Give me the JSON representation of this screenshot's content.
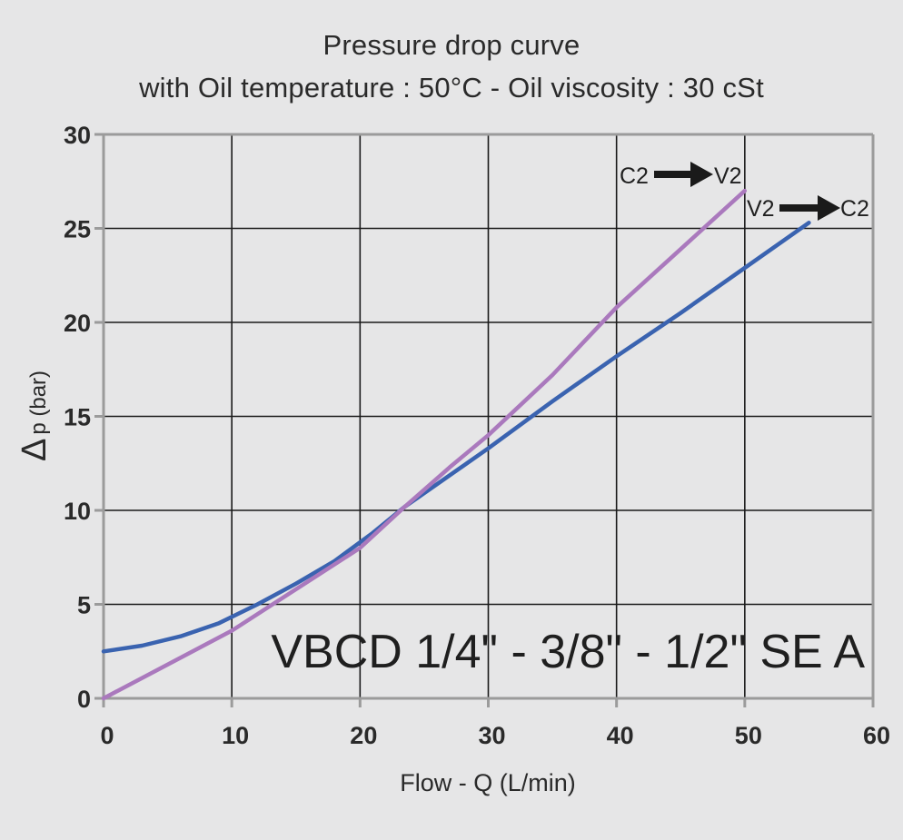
{
  "chart_data": {
    "type": "line",
    "title": "Pressure drop curve",
    "subtitle": "with Oil temperature :  50°C - Oil viscosity : 30 cSt",
    "xlabel": "Flow - Q (L/min)",
    "ylabel": {
      "symbol": "Δ",
      "text": "p (bar)"
    },
    "xlim": [
      0,
      60
    ],
    "ylim": [
      0,
      30
    ],
    "xticks": [
      0,
      10,
      20,
      30,
      40,
      50,
      60
    ],
    "yticks": [
      0,
      5,
      10,
      15,
      20,
      25,
      30
    ],
    "grid": true,
    "annotation": "VBCD 1/4\" - 3/8\" - 1/2\" SE A",
    "series": [
      {
        "name": "V2 → C2",
        "label_from": "V2",
        "label_to": "C2",
        "color": "#3a63b0",
        "x": [
          0,
          3,
          6,
          9,
          12,
          15,
          18,
          21,
          23.5,
          30,
          35,
          40,
          45,
          50,
          55
        ],
        "y": [
          2.5,
          2.8,
          3.3,
          4.0,
          5.0,
          6.1,
          7.3,
          8.8,
          10.2,
          13.3,
          15.8,
          18.2,
          20.5,
          22.9,
          25.3
        ]
      },
      {
        "name": "C2 → V2",
        "label_from": "C2",
        "label_to": "V2",
        "color": "#aa79bd",
        "x": [
          0,
          5,
          10,
          15,
          20,
          23.5,
          27,
          30,
          35,
          40,
          45,
          50
        ],
        "y": [
          0,
          1.8,
          3.6,
          5.8,
          8.0,
          10.2,
          12.3,
          14.0,
          17.2,
          20.8,
          23.9,
          27.0
        ]
      }
    ],
    "colors": {
      "background": "#e6e6e7",
      "grid": "#1a1a1a",
      "frame": "#9b9b9b",
      "arrow": "#1a1a1a"
    }
  }
}
